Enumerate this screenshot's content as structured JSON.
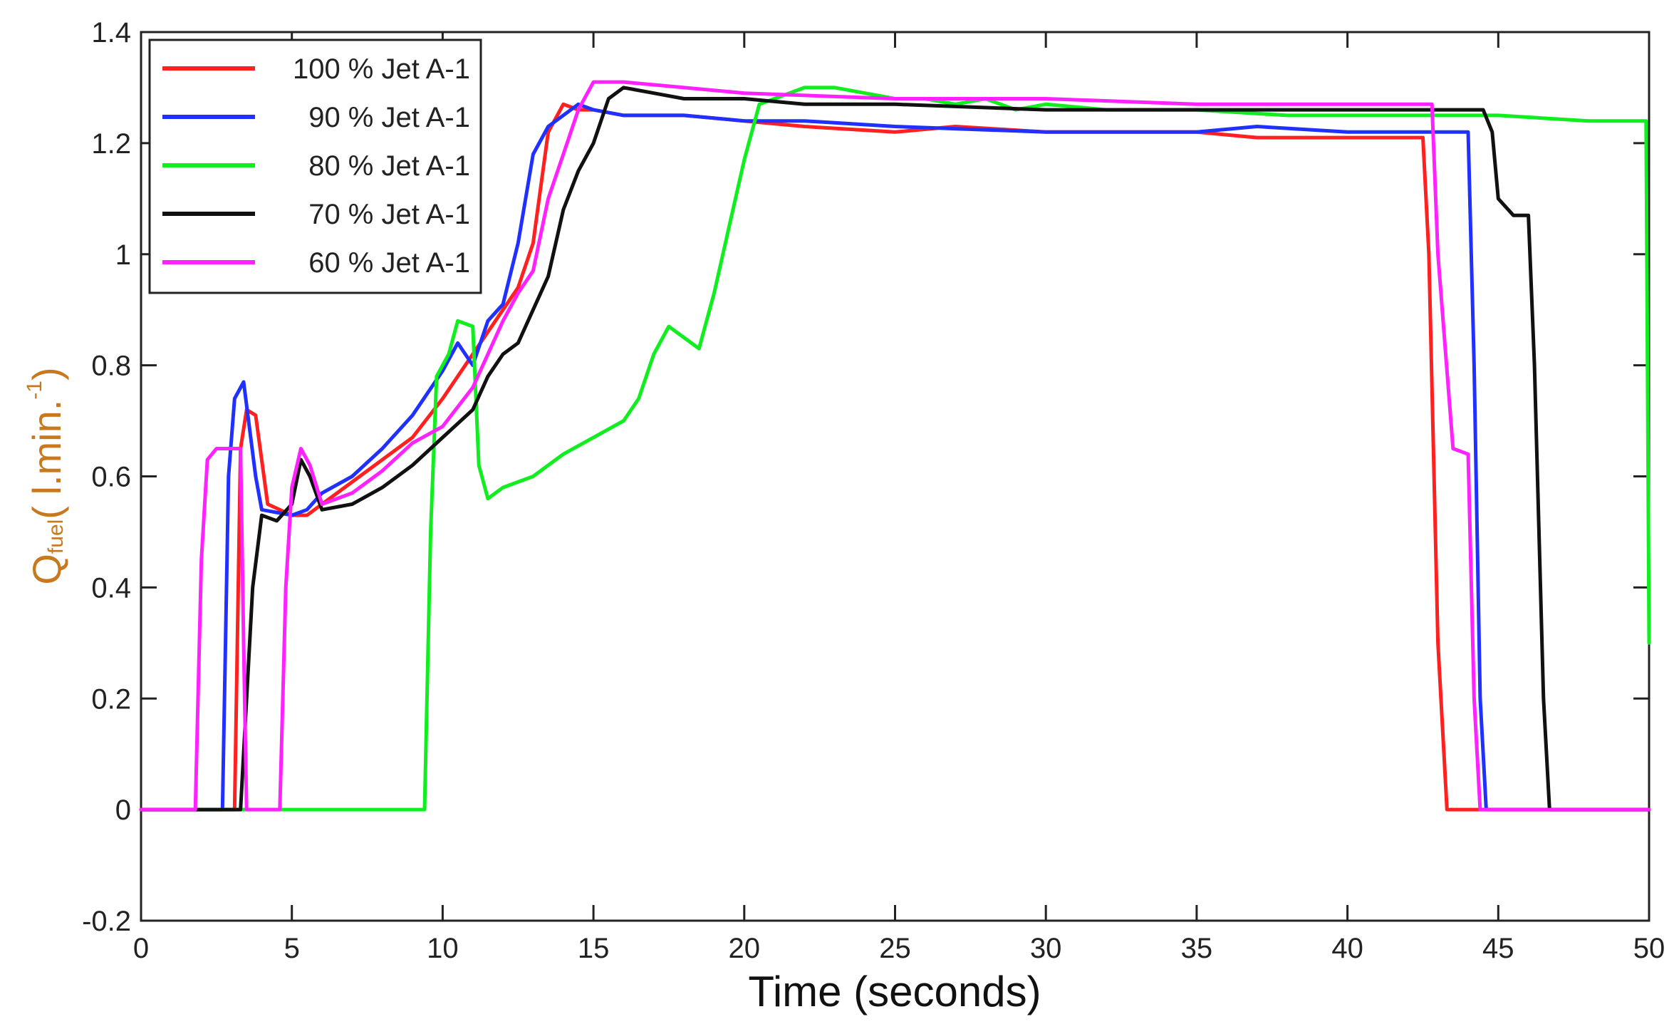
{
  "chart_data": {
    "type": "line",
    "title": "",
    "xlabel": "Time (seconds)",
    "ylabel": {
      "symbol": "Q",
      "subscript": "fuel",
      "units_open": "( l.min.",
      "units_exp": "-1",
      "units_close": ")"
    },
    "xlim": [
      0,
      50
    ],
    "ylim": [
      -0.2,
      1.4
    ],
    "xticks": [
      0,
      5,
      10,
      15,
      20,
      25,
      30,
      35,
      40,
      45,
      50
    ],
    "yticks": [
      -0.2,
      0,
      0.2,
      0.4,
      0.6,
      0.8,
      1,
      1.2,
      1.4
    ],
    "xtick_labels": [
      "0",
      "5",
      "10",
      "15",
      "20",
      "25",
      "30",
      "35",
      "40",
      "45",
      "50"
    ],
    "ytick_labels": [
      "-0.2",
      "0",
      "0.2",
      "0.4",
      "0.6",
      "0.8",
      "1",
      "1.2",
      "1.4"
    ],
    "grid": false,
    "legend_position": "top-left",
    "series": [
      {
        "name": "100 % Jet A-1",
        "color": "#ff2020",
        "points": [
          [
            0,
            0
          ],
          [
            3.1,
            0
          ],
          [
            3.3,
            0.65
          ],
          [
            3.5,
            0.72
          ],
          [
            3.8,
            0.71
          ],
          [
            4.2,
            0.55
          ],
          [
            5,
            0.53
          ],
          [
            5.5,
            0.53
          ],
          [
            6,
            0.55
          ],
          [
            7,
            0.59
          ],
          [
            8,
            0.63
          ],
          [
            9,
            0.67
          ],
          [
            10,
            0.74
          ],
          [
            11,
            0.82
          ],
          [
            12,
            0.9
          ],
          [
            12.5,
            0.94
          ],
          [
            13,
            1.02
          ],
          [
            13.5,
            1.22
          ],
          [
            14,
            1.27
          ],
          [
            14.5,
            1.26
          ],
          [
            15,
            1.26
          ],
          [
            16,
            1.25
          ],
          [
            18,
            1.25
          ],
          [
            20,
            1.24
          ],
          [
            22,
            1.23
          ],
          [
            25,
            1.22
          ],
          [
            27,
            1.23
          ],
          [
            30,
            1.22
          ],
          [
            35,
            1.22
          ],
          [
            37,
            1.21
          ],
          [
            40,
            1.21
          ],
          [
            41,
            1.21
          ],
          [
            42.5,
            1.21
          ],
          [
            42.7,
            1.0
          ],
          [
            43,
            0.3
          ],
          [
            43.3,
            0
          ],
          [
            50,
            0
          ]
        ]
      },
      {
        "name": "90 % Jet A-1",
        "color": "#2030ff",
        "points": [
          [
            0,
            0
          ],
          [
            2.7,
            0
          ],
          [
            2.9,
            0.6
          ],
          [
            3.1,
            0.74
          ],
          [
            3.4,
            0.77
          ],
          [
            3.8,
            0.6
          ],
          [
            4,
            0.54
          ],
          [
            5,
            0.53
          ],
          [
            5.5,
            0.54
          ],
          [
            6,
            0.57
          ],
          [
            7,
            0.6
          ],
          [
            8,
            0.65
          ],
          [
            9,
            0.71
          ],
          [
            10,
            0.79
          ],
          [
            10.5,
            0.84
          ],
          [
            11,
            0.8
          ],
          [
            11.5,
            0.88
          ],
          [
            12,
            0.91
          ],
          [
            12.5,
            1.02
          ],
          [
            13,
            1.18
          ],
          [
            13.5,
            1.23
          ],
          [
            14,
            1.25
          ],
          [
            14.5,
            1.27
          ],
          [
            15,
            1.26
          ],
          [
            16,
            1.25
          ],
          [
            18,
            1.25
          ],
          [
            20,
            1.24
          ],
          [
            22,
            1.24
          ],
          [
            25,
            1.23
          ],
          [
            30,
            1.22
          ],
          [
            35,
            1.22
          ],
          [
            37,
            1.23
          ],
          [
            40,
            1.22
          ],
          [
            44,
            1.22
          ],
          [
            44.2,
            0.8
          ],
          [
            44.4,
            0.2
          ],
          [
            44.6,
            0
          ],
          [
            50,
            0
          ]
        ]
      },
      {
        "name": "80 % Jet A-1",
        "color": "#10ee20",
        "points": [
          [
            0,
            0
          ],
          [
            9.4,
            0
          ],
          [
            9.6,
            0.5
          ],
          [
            9.8,
            0.78
          ],
          [
            10.2,
            0.82
          ],
          [
            10.5,
            0.88
          ],
          [
            11,
            0.87
          ],
          [
            11.2,
            0.62
          ],
          [
            11.5,
            0.56
          ],
          [
            12,
            0.58
          ],
          [
            13,
            0.6
          ],
          [
            14,
            0.64
          ],
          [
            15,
            0.67
          ],
          [
            16,
            0.7
          ],
          [
            16.5,
            0.74
          ],
          [
            17,
            0.82
          ],
          [
            17.5,
            0.87
          ],
          [
            18,
            0.85
          ],
          [
            18.5,
            0.83
          ],
          [
            19,
            0.93
          ],
          [
            19.5,
            1.05
          ],
          [
            20,
            1.17
          ],
          [
            20.3,
            1.23
          ],
          [
            20.5,
            1.27
          ],
          [
            21,
            1.28
          ],
          [
            22,
            1.3
          ],
          [
            23,
            1.3
          ],
          [
            24,
            1.29
          ],
          [
            25,
            1.28
          ],
          [
            26,
            1.28
          ],
          [
            27,
            1.27
          ],
          [
            28,
            1.28
          ],
          [
            29,
            1.26
          ],
          [
            30,
            1.27
          ],
          [
            32,
            1.26
          ],
          [
            35,
            1.26
          ],
          [
            38,
            1.25
          ],
          [
            40,
            1.25
          ],
          [
            45,
            1.25
          ],
          [
            48,
            1.24
          ],
          [
            49.9,
            1.24
          ],
          [
            50,
            0.3
          ]
        ]
      },
      {
        "name": "70 % Jet A-1",
        "color": "#111111",
        "points": [
          [
            0,
            0
          ],
          [
            3.3,
            0
          ],
          [
            3.5,
            0.2
          ],
          [
            3.7,
            0.4
          ],
          [
            4,
            0.53
          ],
          [
            4.5,
            0.52
          ],
          [
            5,
            0.55
          ],
          [
            5.3,
            0.63
          ],
          [
            5.6,
            0.6
          ],
          [
            6,
            0.54
          ],
          [
            7,
            0.55
          ],
          [
            8,
            0.58
          ],
          [
            9,
            0.62
          ],
          [
            10,
            0.67
          ],
          [
            11,
            0.72
          ],
          [
            11.5,
            0.78
          ],
          [
            12,
            0.82
          ],
          [
            12.5,
            0.84
          ],
          [
            13,
            0.9
          ],
          [
            13.5,
            0.96
          ],
          [
            14,
            1.08
          ],
          [
            14.5,
            1.15
          ],
          [
            15,
            1.2
          ],
          [
            15.5,
            1.28
          ],
          [
            16,
            1.3
          ],
          [
            17,
            1.29
          ],
          [
            18,
            1.28
          ],
          [
            20,
            1.28
          ],
          [
            22,
            1.27
          ],
          [
            25,
            1.27
          ],
          [
            30,
            1.26
          ],
          [
            35,
            1.26
          ],
          [
            40,
            1.26
          ],
          [
            44.5,
            1.26
          ],
          [
            44.8,
            1.22
          ],
          [
            45,
            1.1
          ],
          [
            45.5,
            1.07
          ],
          [
            46,
            1.07
          ],
          [
            46.2,
            0.8
          ],
          [
            46.5,
            0.2
          ],
          [
            46.7,
            0
          ],
          [
            50,
            0
          ]
        ]
      },
      {
        "name": "60 % Jet A-1",
        "color": "#ff22ff",
        "points": [
          [
            0,
            0
          ],
          [
            1.8,
            0
          ],
          [
            2,
            0.45
          ],
          [
            2.2,
            0.63
          ],
          [
            2.5,
            0.65
          ],
          [
            3.3,
            0.65
          ],
          [
            3.4,
            0.3
          ],
          [
            3.5,
            0
          ],
          [
            4.6,
            0
          ],
          [
            4.8,
            0.4
          ],
          [
            5,
            0.58
          ],
          [
            5.3,
            0.65
          ],
          [
            5.6,
            0.62
          ],
          [
            6,
            0.55
          ],
          [
            7,
            0.57
          ],
          [
            8,
            0.61
          ],
          [
            9,
            0.66
          ],
          [
            10,
            0.69
          ],
          [
            11,
            0.76
          ],
          [
            12,
            0.88
          ],
          [
            12.5,
            0.93
          ],
          [
            13,
            0.97
          ],
          [
            13.5,
            1.1
          ],
          [
            14,
            1.18
          ],
          [
            14.5,
            1.26
          ],
          [
            15,
            1.31
          ],
          [
            16,
            1.31
          ],
          [
            18,
            1.3
          ],
          [
            20,
            1.29
          ],
          [
            25,
            1.28
          ],
          [
            30,
            1.28
          ],
          [
            35,
            1.27
          ],
          [
            40,
            1.27
          ],
          [
            42.8,
            1.27
          ],
          [
            43,
            1.0
          ],
          [
            43.5,
            0.65
          ],
          [
            44,
            0.64
          ],
          [
            44.2,
            0.2
          ],
          [
            44.4,
            0
          ],
          [
            50,
            0
          ]
        ]
      }
    ]
  }
}
